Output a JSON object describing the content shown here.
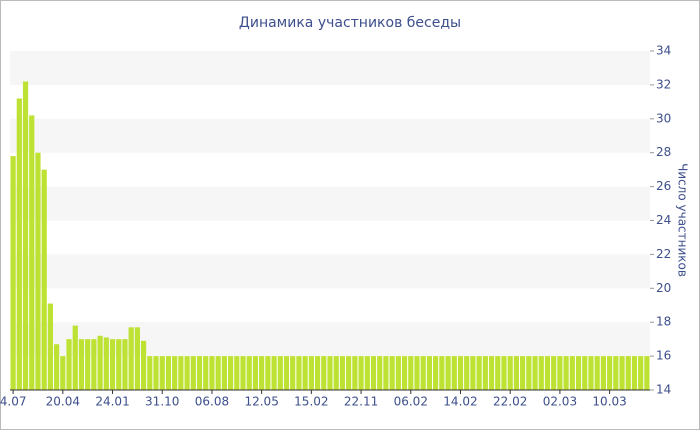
{
  "chart_data": {
    "type": "bar",
    "title": "Динамика участников беседы",
    "y_label": "Число участников",
    "categories": [
      "4.07",
      null,
      null,
      null,
      null,
      null,
      null,
      null,
      "20.04",
      null,
      null,
      null,
      null,
      null,
      null,
      null,
      "24.01",
      null,
      null,
      null,
      null,
      null,
      null,
      null,
      "31.10",
      null,
      null,
      null,
      null,
      null,
      null,
      null,
      "06.08",
      null,
      null,
      null,
      null,
      null,
      null,
      null,
      "12.05",
      null,
      null,
      null,
      null,
      null,
      null,
      null,
      "15.02",
      null,
      null,
      null,
      null,
      null,
      null,
      null,
      "22.11",
      null,
      null,
      null,
      null,
      null,
      null,
      null,
      "06.02",
      null,
      null,
      null,
      null,
      null,
      null,
      null,
      "14.02",
      null,
      null,
      null,
      null,
      null,
      null,
      null,
      "22.02",
      null,
      null,
      null,
      null,
      null,
      null,
      null,
      "02.03",
      null,
      null,
      null,
      null,
      null,
      null,
      null,
      "10.03",
      null,
      null,
      null,
      null,
      null,
      null
    ],
    "values": [
      27.8,
      31.2,
      32.2,
      30.2,
      28,
      27,
      19.1,
      16.7,
      16,
      17,
      17.8,
      17,
      17,
      17,
      17.2,
      17.1,
      17,
      17,
      17,
      17.7,
      17.7,
      16.9,
      16,
      16,
      16,
      16,
      16,
      16,
      16,
      16,
      16,
      16,
      16,
      16,
      16,
      16,
      16,
      16,
      16,
      16,
      16,
      16,
      16,
      16,
      16,
      16,
      16,
      16,
      16,
      16,
      16,
      16,
      16,
      16,
      16,
      16,
      16,
      16,
      16,
      16,
      16,
      16,
      16,
      16,
      16,
      16,
      16,
      16,
      16,
      16,
      16,
      16,
      16,
      16,
      16,
      16,
      16,
      16,
      16,
      16,
      16,
      16,
      16,
      16,
      16,
      16,
      16,
      16,
      16,
      16,
      16,
      16,
      16,
      16,
      16,
      16,
      16,
      16,
      16,
      16,
      16,
      16,
      16
    ],
    "color": "#bde234",
    "ylim": [
      14,
      34
    ],
    "yticks": [
      14,
      16,
      18,
      20,
      22,
      24,
      26,
      28,
      30,
      32,
      34
    ],
    "y_axis_side": "right",
    "grid_bands": true
  }
}
